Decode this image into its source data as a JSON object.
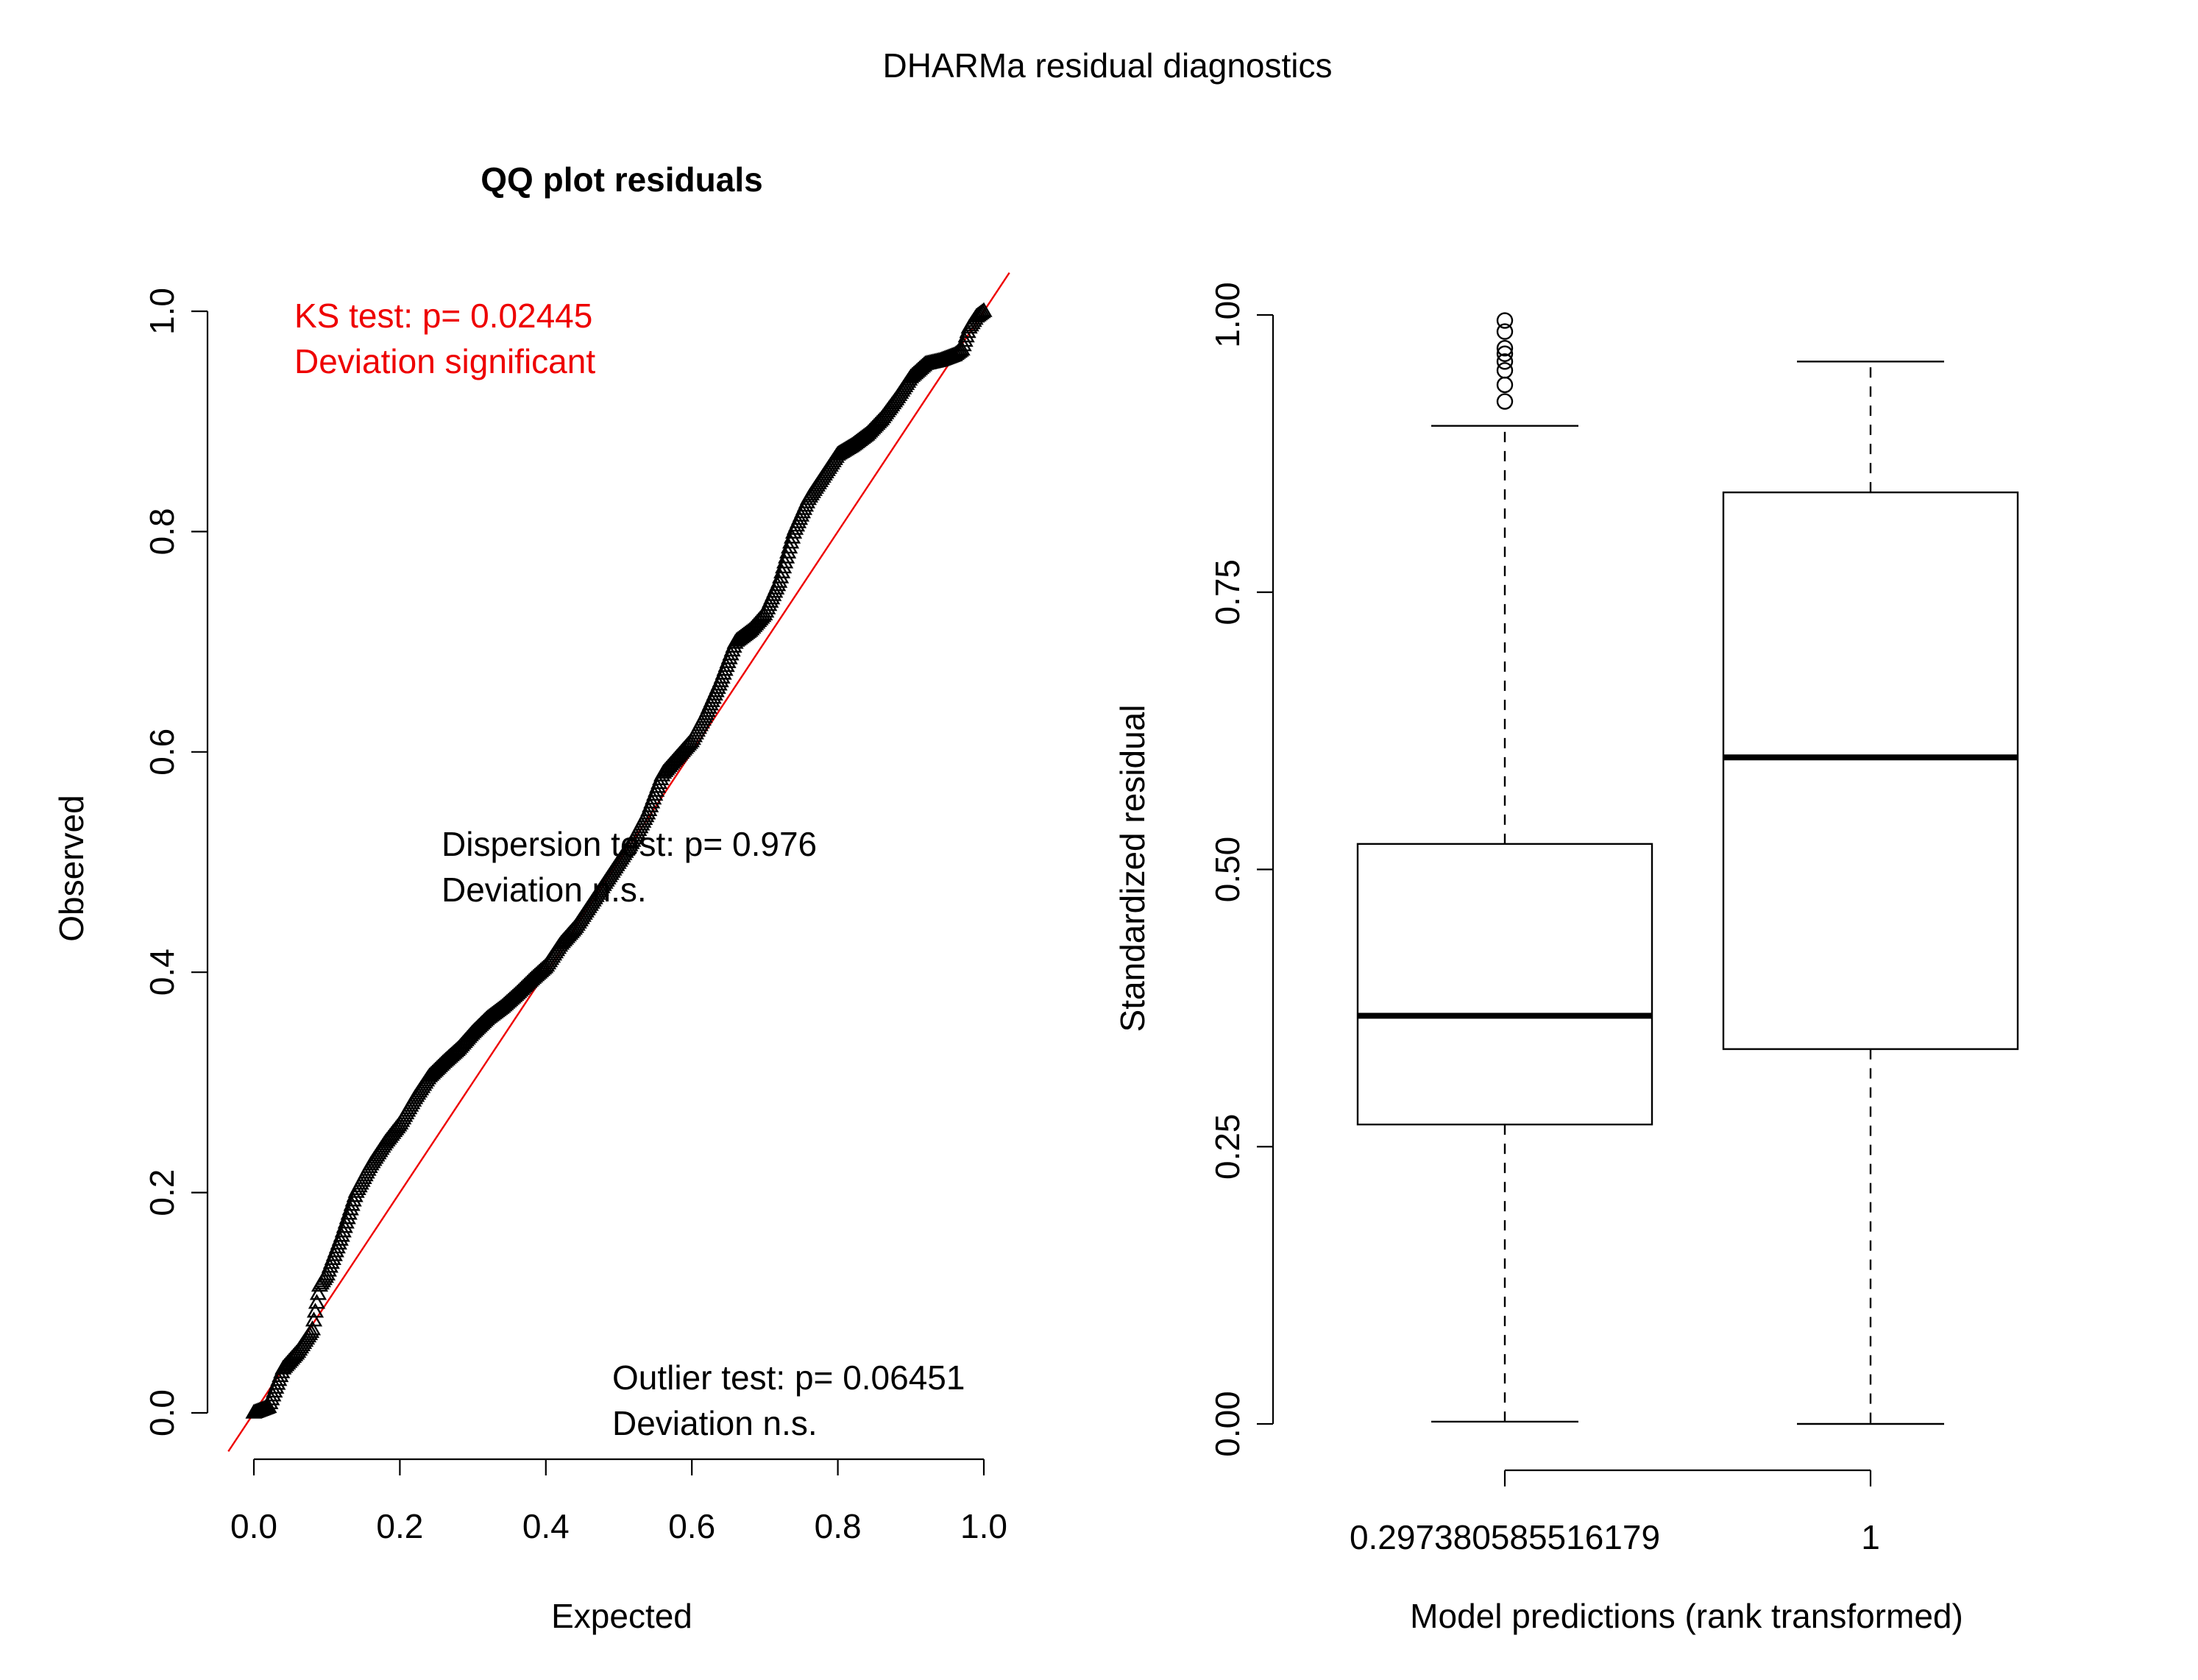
{
  "figure": {
    "title": "DHARMa residual diagnostics"
  },
  "chart_data": [
    {
      "type": "scatter",
      "title": "QQ plot residuals",
      "xlabel": "Expected",
      "ylabel": "Observed",
      "xlim": [
        0,
        1
      ],
      "ylim": [
        0,
        1
      ],
      "xticks": [
        "0.0",
        "0.2",
        "0.4",
        "0.6",
        "0.8",
        "1.0"
      ],
      "yticks": [
        "0.0",
        "0.2",
        "0.4",
        "0.6",
        "0.8",
        "1.0"
      ],
      "marker": "triangle",
      "reference_line": "y = x",
      "reference_line_color": "#ee0000",
      "quantile_curve": {
        "x": [
          0.0,
          0.02,
          0.04,
          0.06,
          0.08,
          0.09,
          0.1,
          0.12,
          0.14,
          0.16,
          0.18,
          0.2,
          0.22,
          0.24,
          0.26,
          0.28,
          0.3,
          0.32,
          0.34,
          0.36,
          0.38,
          0.4,
          0.42,
          0.44,
          0.46,
          0.48,
          0.5,
          0.52,
          0.54,
          0.56,
          0.58,
          0.6,
          0.62,
          0.64,
          0.66,
          0.68,
          0.7,
          0.72,
          0.74,
          0.76,
          0.78,
          0.8,
          0.82,
          0.84,
          0.86,
          0.88,
          0.9,
          0.92,
          0.94,
          0.96,
          0.97,
          0.98,
          0.99,
          1.0
        ],
        "y": [
          0.0,
          0.005,
          0.04,
          0.055,
          0.075,
          0.115,
          0.125,
          0.16,
          0.2,
          0.225,
          0.245,
          0.262,
          0.285,
          0.305,
          0.318,
          0.33,
          0.345,
          0.358,
          0.368,
          0.38,
          0.393,
          0.405,
          0.425,
          0.44,
          0.46,
          0.48,
          0.5,
          0.52,
          0.545,
          0.58,
          0.595,
          0.61,
          0.635,
          0.665,
          0.7,
          0.71,
          0.725,
          0.755,
          0.8,
          0.83,
          0.85,
          0.87,
          0.878,
          0.888,
          0.902,
          0.92,
          0.94,
          0.952,
          0.955,
          0.96,
          0.965,
          0.985,
          0.995,
          1.0
        ]
      },
      "annotations": [
        {
          "lines": [
            "KS test: p= 0.02445",
            "Deviation  significant"
          ],
          "color": "#ee0000"
        },
        {
          "lines": [
            "Dispersion test: p= 0.976",
            "Deviation  n.s."
          ],
          "color": "#000000"
        },
        {
          "lines": [
            "Outlier test: p= 0.06451",
            "Deviation  n.s."
          ],
          "color": "#000000"
        }
      ]
    },
    {
      "type": "box",
      "xlabel": "Model predictions (rank transformed)",
      "ylabel": "Standardized residual",
      "ylim": [
        0,
        1
      ],
      "yticks": [
        "0.00",
        "0.25",
        "0.50",
        "0.75",
        "1.00"
      ],
      "categories": [
        "0.297380585516179",
        "1"
      ],
      "boxes": [
        {
          "whisker_low": 0.002,
          "q1": 0.27,
          "median": 0.368,
          "q3": 0.523,
          "whisker_high": 0.9,
          "outliers": [
            0.922,
            0.937,
            0.95,
            0.958,
            0.965,
            0.97,
            0.985,
            0.995
          ]
        },
        {
          "whisker_low": 0.0,
          "q1": 0.338,
          "median": 0.601,
          "q3": 0.84,
          "whisker_high": 0.958,
          "outliers": []
        }
      ]
    }
  ]
}
